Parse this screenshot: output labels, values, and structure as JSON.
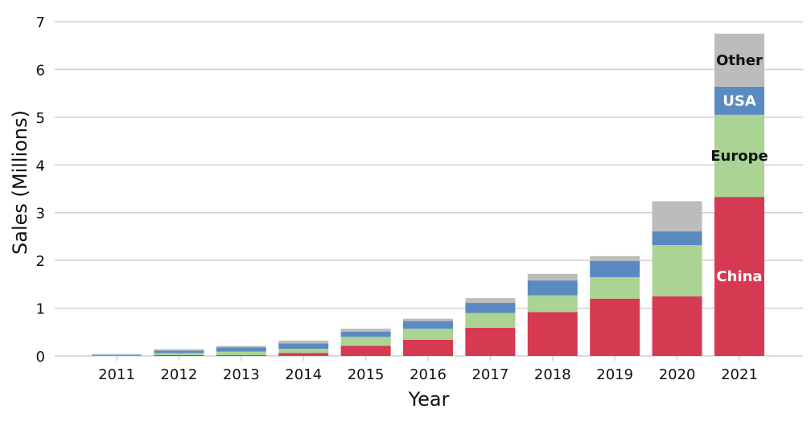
{
  "chart_data": {
    "type": "bar",
    "stacked": true,
    "title": "",
    "xlabel": "Year",
    "ylabel": "Sales (Millions)",
    "ylim": [
      0,
      7
    ],
    "yticks": [
      "0",
      "1",
      "2",
      "3",
      "4",
      "5",
      "6",
      "7"
    ],
    "grid": true,
    "categories": [
      "2011",
      "2012",
      "2013",
      "2014",
      "2015",
      "2016",
      "2017",
      "2018",
      "2019",
      "2020",
      "2021"
    ],
    "series": [
      {
        "name": "China",
        "color": "#d63a52",
        "label_color": "#ffffff",
        "values": [
          0.01,
          0.02,
          0.02,
          0.06,
          0.21,
          0.34,
          0.59,
          0.92,
          1.2,
          1.25,
          3.33
        ]
      },
      {
        "name": "Europe",
        "color": "#abd393",
        "label_color": "#111111",
        "values": [
          0.01,
          0.04,
          0.07,
          0.09,
          0.19,
          0.23,
          0.31,
          0.35,
          0.45,
          1.07,
          1.72
        ]
      },
      {
        "name": "USA",
        "color": "#5b8ac0",
        "label_color": "#ffffff",
        "values": [
          0.01,
          0.05,
          0.09,
          0.11,
          0.11,
          0.16,
          0.21,
          0.31,
          0.34,
          0.29,
          0.59
        ]
      },
      {
        "name": "Other",
        "color": "#bcbcbc",
        "label_color": "#111111",
        "values": [
          0.01,
          0.03,
          0.03,
          0.06,
          0.06,
          0.05,
          0.1,
          0.14,
          0.1,
          0.63,
          1.11
        ]
      }
    ]
  }
}
